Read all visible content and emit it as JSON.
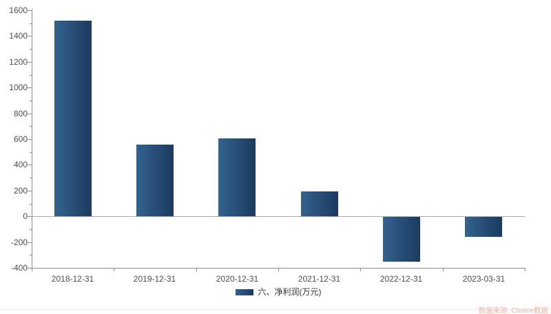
{
  "chart": {
    "legend_label": "六、净利润(万元)",
    "source_label": "数据来源: Choice数据"
  },
  "chart_data": {
    "type": "bar",
    "categories": [
      "2018-12-31",
      "2019-12-31",
      "2020-12-31",
      "2021-12-31",
      "2022-12-31",
      "2023-03-31"
    ],
    "series": [
      {
        "name": "六、净利润(万元)",
        "values": [
          1520,
          555,
          605,
          195,
          -345,
          -155
        ]
      }
    ],
    "title": "",
    "xlabel": "",
    "ylabel": "",
    "ylim": [
      -400,
      1600
    ],
    "ytick_step": 200,
    "minor_tick_step": 100,
    "grid": false,
    "legend_position": "bottom-center",
    "source": "数据来源: Choice数据",
    "colors": {
      "bar_gradient_left": "#33628f",
      "bar_gradient_right": "#1b3a5e",
      "axis": "#8c8c8c",
      "zero_line": "#a6a6a6",
      "tick_label": "#4d4d4d",
      "legend_text": "#333333",
      "source_text": "#f0b2a0"
    }
  }
}
